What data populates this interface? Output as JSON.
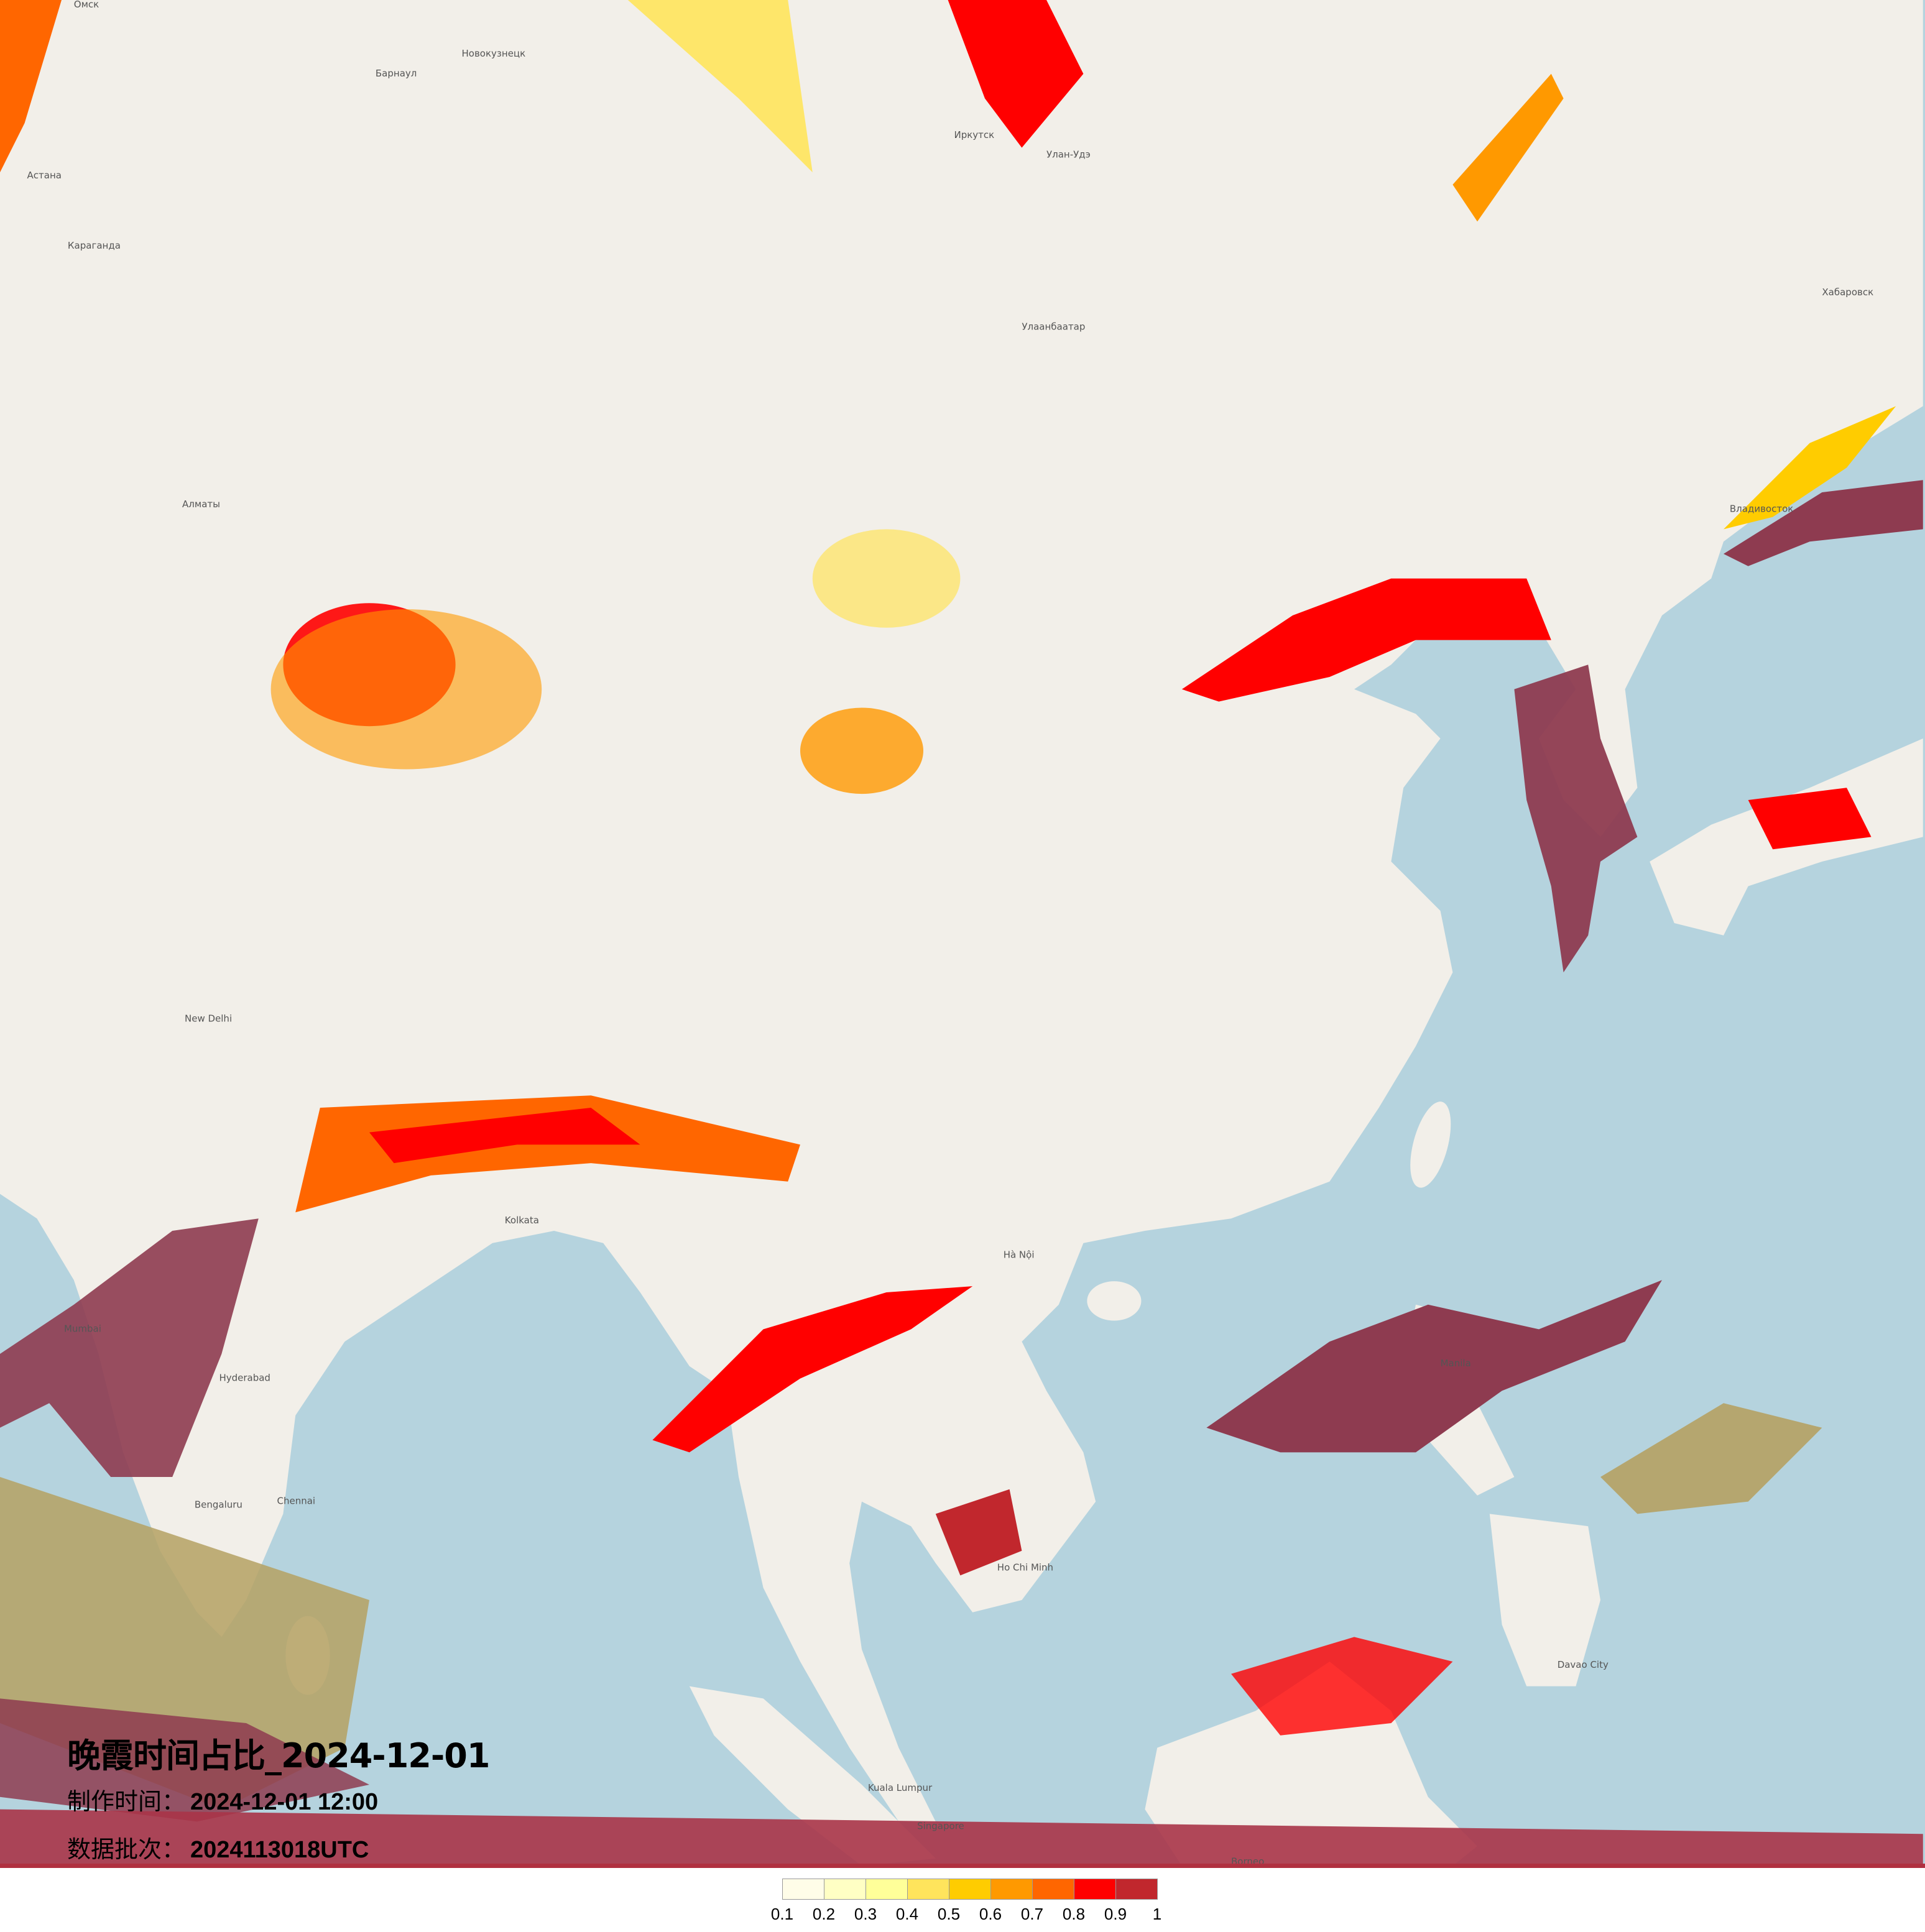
{
  "title": "晚霞时间占比_2024-12-01",
  "meta": {
    "made_label": "制作时间：",
    "made_value": "2024-12-01 12:00",
    "batch_label": "数据批次：",
    "batch_value": "2024113018UTC"
  },
  "legend": {
    "colors": [
      "#fffde8",
      "#ffffc4",
      "#ffff99",
      "#ffe45c",
      "#ffcc00",
      "#ff9900",
      "#ff6600",
      "#ff0000",
      "#c1272d"
    ],
    "ticks": [
      "0.1",
      "0.2",
      "0.3",
      "0.4",
      "0.5",
      "0.6",
      "0.7",
      "0.8",
      "0.9",
      "1"
    ]
  },
  "map": {
    "land_color": "#f2efe9",
    "sea_color": "#b5d3de",
    "labels": [
      "Омск",
      "Барнаул",
      "Новокузнецк",
      "Астана",
      "Караганда",
      "Алматы",
      "Иркутск",
      "Улан-Удэ",
      "Улаанбаатар",
      "Хабаровск",
      "Владивосток",
      "New Delhi",
      "Kolkata",
      "Mumbai",
      "Hyderabad",
      "Bengaluru",
      "Chennai",
      "Hà Nội",
      "Ho Chi Minh",
      "Manila",
      "Kuala Lumpur",
      "Singapore",
      "Borneo",
      "Davao City"
    ]
  }
}
